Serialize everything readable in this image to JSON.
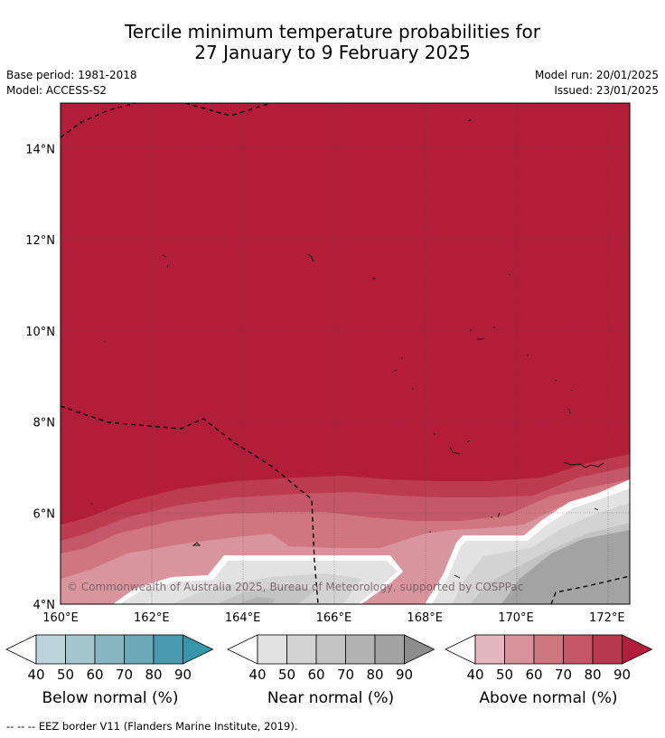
{
  "title_line1": "Tercile minimum temperature probabilities for",
  "title_line2": "27 January to 9 February 2025",
  "base_period": "Base period: 1981-2018",
  "model": "Model: ACCESS-S2",
  "model_run": "Model run: 20/01/2025",
  "issued": "Issued: 23/01/2025",
  "map": {
    "lat_labels": [
      "14°N",
      "12°N",
      "10°N",
      "8°N",
      "6°N",
      "4°N"
    ],
    "lat_values": [
      14,
      12,
      10,
      8,
      6,
      4
    ],
    "lon_labels": [
      "160°E",
      "162°E",
      "164°E",
      "166°E",
      "168°E",
      "170°E",
      "172°E"
    ],
    "lon_values": [
      160,
      162,
      164,
      166,
      168,
      170,
      172
    ],
    "lat_range": [
      4,
      15
    ],
    "lon_range": [
      160,
      172.5
    ],
    "copyright": "© Commonwealth of Australia 2025, Bureau of Meteorology, supported by COSPPac"
  },
  "colorbars": [
    {
      "label": "Below normal (%)",
      "ticks": [
        "40",
        "50",
        "60",
        "70",
        "80",
        "90"
      ],
      "colors": [
        "#ffffff",
        "#bdd3da",
        "#a3c5cc",
        "#86b6c2",
        "#6aa9b8",
        "#4b9bb0",
        "#3796aa"
      ]
    },
    {
      "label": "Near normal (%)",
      "ticks": [
        "40",
        "50",
        "60",
        "70",
        "80",
        "90"
      ],
      "colors": [
        "#ffffff",
        "#e2e2e2",
        "#d3d3d3",
        "#c3c3c3",
        "#b3b3b3",
        "#a2a2a2",
        "#8d8d8d"
      ]
    },
    {
      "label": "Above normal (%)",
      "ticks": [
        "40",
        "50",
        "60",
        "70",
        "80",
        "90"
      ],
      "colors": [
        "#ffffff",
        "#e3b7bd",
        "#d7939c",
        "#cd7680",
        "#c45767",
        "#b7394d",
        "#b11e3a"
      ]
    }
  ],
  "footer": "--  --  -- EEZ border V11 (Flanders Marine Institute, 2019)."
}
